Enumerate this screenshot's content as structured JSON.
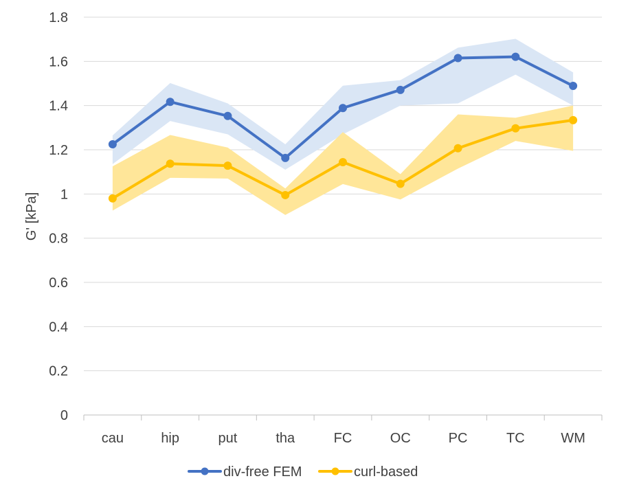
{
  "chart_data": {
    "type": "line",
    "title": "",
    "xlabel": "",
    "ylabel": "G' [kPa]",
    "ylim": [
      0,
      1.8
    ],
    "ytick_step": 0.2,
    "yticks": [
      "0",
      "0.2",
      "0.4",
      "0.6",
      "0.8",
      "1",
      "1.2",
      "1.4",
      "1.6",
      "1.8"
    ],
    "grid": true,
    "legend_position": "bottom",
    "categories": [
      "cau",
      "hip",
      "put",
      "tha",
      "FC",
      "OC",
      "PC",
      "TC",
      "WM"
    ],
    "series": [
      {
        "name": "div-free FEM",
        "color": "#4472c4",
        "band_color": "#dae6f5",
        "values": [
          1.225,
          1.417,
          1.353,
          1.163,
          1.389,
          1.471,
          1.615,
          1.621,
          1.489
        ],
        "lower": [
          1.135,
          1.33,
          1.27,
          1.11,
          1.27,
          1.4,
          1.41,
          1.54,
          1.4
        ],
        "upper": [
          1.265,
          1.502,
          1.41,
          1.225,
          1.49,
          1.515,
          1.662,
          1.702,
          1.55
        ]
      },
      {
        "name": "curl-based",
        "color": "#ffc000",
        "band_color": "#ffe699",
        "values": [
          0.98,
          1.137,
          1.128,
          0.995,
          1.144,
          1.046,
          1.207,
          1.297,
          1.334
        ],
        "lower": [
          0.925,
          1.073,
          1.07,
          0.905,
          1.045,
          0.975,
          1.115,
          1.24,
          1.195
        ],
        "upper": [
          1.125,
          1.267,
          1.21,
          1.025,
          1.28,
          1.09,
          1.36,
          1.345,
          1.4
        ]
      }
    ]
  }
}
